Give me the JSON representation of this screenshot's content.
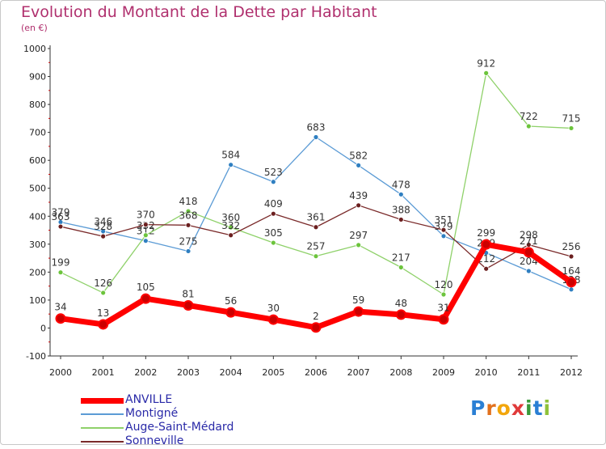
{
  "chart_data": {
    "type": "line",
    "title": "Evolution du Montant de la Dette par Habitant",
    "subtitle": "(en €)",
    "x": [
      "2000",
      "2001",
      "2002",
      "2003",
      "2004",
      "2005",
      "2006",
      "2007",
      "2008",
      "2009",
      "2010",
      "2011",
      "2012"
    ],
    "ylim": [
      -100,
      1000
    ],
    "yticks": [
      "-100",
      "0",
      "100",
      "200",
      "300",
      "400",
      "500",
      "600",
      "700",
      "800",
      "900",
      "1000"
    ],
    "grid": false,
    "legend_position": "bottom-left",
    "series": [
      {
        "name": "Montigné",
        "color": "#5b9bd5",
        "point": "#2f7fc1",
        "values": [
          379,
          346,
          312,
          275,
          584,
          523,
          683,
          582,
          478,
          329,
          269,
          204,
          138
        ]
      },
      {
        "name": "Auge-Saint-Médard",
        "color": "#8fd16a",
        "point": "#6cc43c",
        "values": [
          199,
          126,
          332,
          418,
          360,
          305,
          257,
          297,
          217,
          120,
          912,
          722,
          715
        ]
      },
      {
        "name": "Sonneville",
        "color": "#7a2a2a",
        "point": "#6b1f1f",
        "values": [
          363,
          328,
          370,
          368,
          332,
          409,
          361,
          439,
          388,
          351,
          212,
          298,
          256
        ]
      },
      {
        "name": "ANVILLE",
        "color": "#ff0000",
        "point": "#cc0000",
        "values": [
          34,
          13,
          105,
          81,
          56,
          30,
          2,
          59,
          48,
          31,
          299,
          271,
          164
        ]
      }
    ],
    "legend_order": [
      "ANVILLE",
      "Montigné",
      "Auge-Saint-Médard",
      "Sonneville"
    ]
  },
  "logo": {
    "letters": [
      "P",
      "r",
      "o",
      "x",
      "i",
      "t",
      "i"
    ],
    "colors": [
      "#2a7fd4",
      "#e2711d",
      "#f2a60c",
      "#e03a3a",
      "#3a9a3a",
      "#2a7fd4",
      "#8fc23a"
    ]
  }
}
